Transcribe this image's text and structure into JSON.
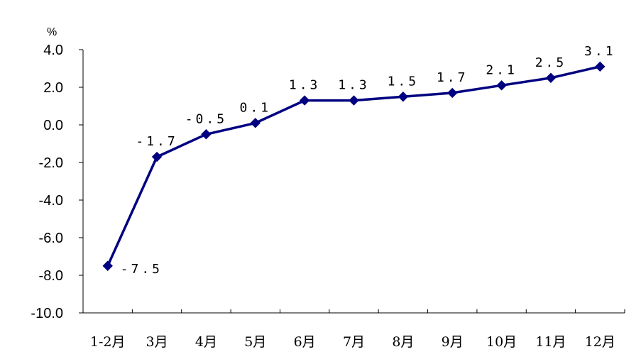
{
  "chart_data": {
    "type": "line",
    "title": "",
    "xlabel": "",
    "ylabel": "%",
    "ylim": [
      -10,
      4
    ],
    "yticks": [
      "4.0",
      "2.0",
      "0.0",
      "-2.0",
      "-4.0",
      "-6.0",
      "-8.0",
      "-10.0"
    ],
    "grid": false,
    "legend": "none",
    "categories": [
      "1-2月",
      "3月",
      "4月",
      "5月",
      "6月",
      "7月",
      "8月",
      "9月",
      "10月",
      "11月",
      "12月"
    ],
    "series": [
      {
        "values": [
          -7.5,
          -1.7,
          -0.5,
          0.1,
          1.3,
          1.3,
          1.5,
          1.7,
          2.1,
          2.5,
          3.1
        ],
        "data_labels": [
          "-7.5",
          "-1.7",
          "-0.5",
          "0.1",
          "1.3",
          "1.3",
          "1.5",
          "1.7",
          "2.1",
          "2.5",
          "3.1"
        ],
        "color": "#000080"
      }
    ],
    "axis_color": "#000000"
  }
}
